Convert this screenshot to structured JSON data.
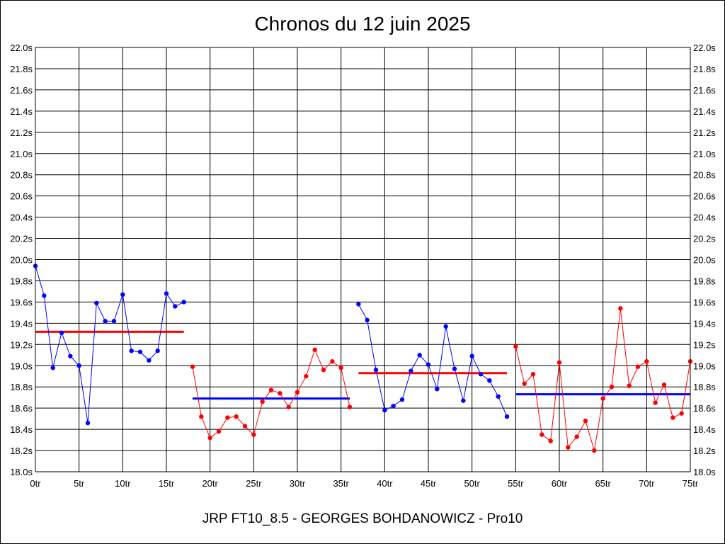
{
  "chart_data": {
    "type": "line",
    "title": "Chronos du 12 juin 2025",
    "subtitle": "JRP FT10_8.5 - GEORGES BOHDANOWICZ - Pro10",
    "xlim": [
      0,
      75
    ],
    "ylim": [
      18.0,
      22.0
    ],
    "x_ticks": [
      "0tr",
      "5tr",
      "10tr",
      "15tr",
      "20tr",
      "25tr",
      "30tr",
      "35tr",
      "40tr",
      "45tr",
      "50tr",
      "55tr",
      "60tr",
      "65tr",
      "70tr",
      "75tr"
    ],
    "y_ticks": [
      "18.0s",
      "18.2s",
      "18.4s",
      "18.6s",
      "18.8s",
      "19.0s",
      "19.2s",
      "19.4s",
      "19.6s",
      "19.8s",
      "20.0s",
      "20.2s",
      "20.4s",
      "20.6s",
      "20.8s",
      "21.0s",
      "21.2s",
      "21.4s",
      "21.6s",
      "21.8s",
      "22.0s"
    ],
    "grid": true,
    "series": [
      {
        "color": "#0000ff",
        "x": [
          0,
          1,
          2,
          3,
          4,
          5,
          6,
          7,
          8,
          9,
          10,
          11,
          12,
          13,
          14,
          15,
          16,
          17
        ],
        "y": [
          19.94,
          19.66,
          18.98,
          19.31,
          19.09,
          19.0,
          18.46,
          19.59,
          19.42,
          19.42,
          19.67,
          19.14,
          19.13,
          19.05,
          19.14,
          19.68,
          19.56,
          19.6
        ],
        "mean": 19.32,
        "mean_color": "#ff0000"
      },
      {
        "color": "#ff0000",
        "x": [
          18,
          19,
          20,
          21,
          22,
          23,
          24,
          25,
          26,
          27,
          28,
          29,
          30,
          31,
          32,
          33,
          34,
          35,
          36
        ],
        "y": [
          18.99,
          18.52,
          18.32,
          18.38,
          18.51,
          18.52,
          18.43,
          18.35,
          18.66,
          18.77,
          18.74,
          18.61,
          18.75,
          18.9,
          19.15,
          18.96,
          19.04,
          18.98,
          18.61
        ],
        "mean": 18.69,
        "mean_color": "#0000ff"
      },
      {
        "color": "#0000ff",
        "x": [
          37,
          38,
          39,
          40,
          41,
          42,
          43,
          44,
          45,
          46,
          47,
          48,
          49,
          50,
          51,
          52,
          53,
          54
        ],
        "y": [
          19.58,
          19.43,
          18.96,
          18.58,
          18.62,
          18.68,
          18.95,
          19.1,
          19.01,
          18.78,
          19.37,
          18.97,
          18.67,
          19.09,
          18.92,
          18.86,
          18.71,
          18.52
        ],
        "mean": 18.93,
        "mean_color": "#ff0000"
      },
      {
        "color": "#ff0000",
        "x": [
          55,
          56,
          57,
          58,
          59,
          60,
          61,
          62,
          63,
          64,
          65,
          66,
          67,
          68,
          69,
          70,
          71,
          72,
          73,
          74,
          75
        ],
        "y": [
          19.18,
          18.83,
          18.92,
          18.35,
          18.29,
          19.03,
          18.23,
          18.33,
          18.48,
          18.2,
          18.69,
          18.8,
          19.54,
          18.81,
          18.99,
          19.04,
          18.65,
          18.82,
          18.51,
          18.55,
          19.04
        ],
        "mean": 18.73,
        "mean_color": "#0000ff"
      }
    ]
  }
}
